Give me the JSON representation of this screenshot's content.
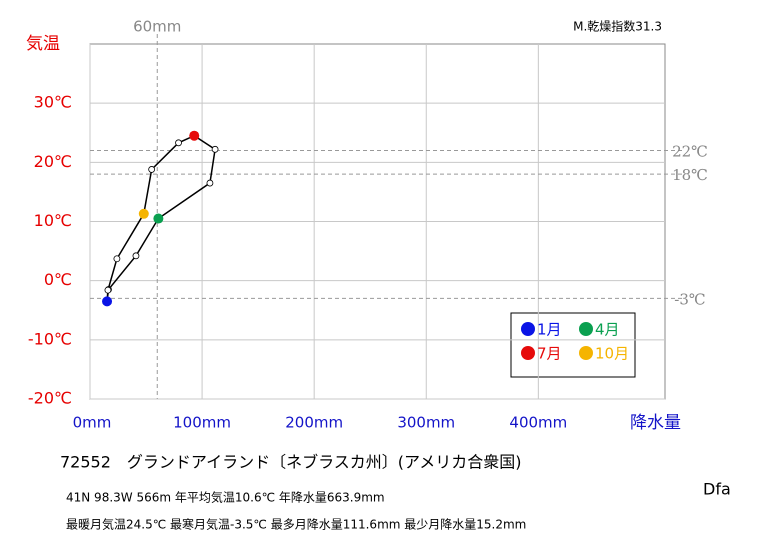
{
  "chart_data": {
    "type": "climograph",
    "y_label": "気温",
    "x_label": "降水量",
    "corner_note": "M.乾燥指数31.3",
    "categories": [
      "1月",
      null,
      null,
      "4月",
      null,
      null,
      "7月",
      null,
      null,
      "10月",
      null,
      null
    ],
    "marker_colors": [
      "#0a14e6",
      null,
      null,
      "#0aa050",
      null,
      null,
      "#e60a0a",
      null,
      null,
      "#f5b400",
      null,
      null
    ],
    "x": [
      15.2,
      16.5,
      41,
      61,
      107,
      111.6,
      93,
      79,
      55,
      48,
      24,
      16
    ],
    "values": [
      -3.5,
      -1.5,
      4.2,
      10.5,
      16.5,
      22.2,
      24.5,
      23.3,
      18.8,
      11.3,
      3.7,
      -1.6
    ],
    "xlim": [
      0,
      513
    ],
    "ylim": [
      -20,
      40
    ],
    "xticks": [
      {
        "value": 0,
        "label": "0mm"
      },
      {
        "value": 100,
        "label": "100mm"
      },
      {
        "value": 200,
        "label": "200mm"
      },
      {
        "value": 300,
        "label": "300mm"
      },
      {
        "value": 400,
        "label": "400mm"
      }
    ],
    "yticks": [
      {
        "value": -20,
        "label": "-20℃"
      },
      {
        "value": -10,
        "label": "-10℃"
      },
      {
        "value": 0,
        "label": "0℃"
      },
      {
        "value": 10,
        "label": "10℃"
      },
      {
        "value": 20,
        "label": "20℃"
      },
      {
        "value": 30,
        "label": "30℃"
      }
    ],
    "x_reference_lines": [
      {
        "value": 60,
        "label": "60mm"
      }
    ],
    "y_reference_lines": [
      {
        "value": 22,
        "label": "22℃"
      },
      {
        "value": 18,
        "label": "18℃"
      },
      {
        "value": -3,
        "label": "-3℃"
      }
    ],
    "grid": true
  },
  "station": "72552　グランドアイランド〔ネブラスカ州〕(アメリカ合衆国)",
  "details": "41N  98.3W 566m  年平均気温10.6℃ 年降水量663.9mm",
  "extremes": "最暖月気温24.5℃ 最寒月気温-3.5℃ 最多月降水量111.6mm 最少月降水量15.2mm",
  "climate_class": "Dfa"
}
